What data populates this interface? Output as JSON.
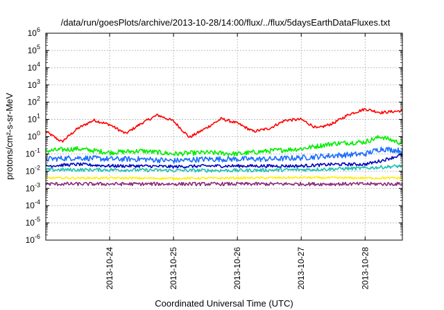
{
  "chart_data": {
    "type": "line",
    "title": "/data/run/goesPlots/archive/2013-10-28/14:00/flux/../flux/5daysEarthDataFluxes.txt",
    "xlabel": "Coordinated Universal Time (UTC)",
    "ylabel": "protons/cm²-s-sr-MeV",
    "y_scale": "log",
    "ylim": [
      1e-06,
      1000000.0
    ],
    "y_ticks": [
      {
        "base": "10",
        "exp": "-6"
      },
      {
        "base": "10",
        "exp": "-5"
      },
      {
        "base": "10",
        "exp": "-4"
      },
      {
        "base": "10",
        "exp": "-3"
      },
      {
        "base": "10",
        "exp": "-2"
      },
      {
        "base": "10",
        "exp": "-1"
      },
      {
        "base": "10",
        "exp": "0"
      },
      {
        "base": "10",
        "exp": "1"
      },
      {
        "base": "10",
        "exp": "2"
      },
      {
        "base": "10",
        "exp": "3"
      },
      {
        "base": "10",
        "exp": "4"
      },
      {
        "base": "10",
        "exp": "5"
      },
      {
        "base": "10",
        "exp": "6"
      }
    ],
    "xlim": [
      "2013-10-23 00:00",
      "2013-10-28 14:00"
    ],
    "x_ticks": [
      "2013-10-24",
      "2013-10-25",
      "2013-10-26",
      "2013-10-27",
      "2013-10-28"
    ],
    "grid": true,
    "legend": "none",
    "series": [
      {
        "color": "#ff0000",
        "x": [
          "2013-10-23 00:00",
          "2013-10-23 06:00",
          "2013-10-23 12:00",
          "2013-10-23 18:00",
          "2013-10-24 00:00",
          "2013-10-24 06:00",
          "2013-10-24 12:00",
          "2013-10-24 18:00",
          "2013-10-25 00:00",
          "2013-10-25 06:00",
          "2013-10-25 12:00",
          "2013-10-25 18:00",
          "2013-10-26 00:00",
          "2013-10-26 06:00",
          "2013-10-26 12:00",
          "2013-10-26 18:00",
          "2013-10-27 00:00",
          "2013-10-27 06:00",
          "2013-10-27 12:00",
          "2013-10-27 18:00",
          "2013-10-28 00:00",
          "2013-10-28 06:00",
          "2013-10-28 12:00",
          "2013-10-28 14:00"
        ],
        "y": [
          2,
          0.5,
          3,
          9,
          5,
          1.5,
          6,
          18,
          8,
          0.9,
          3,
          11,
          6,
          2,
          3,
          9,
          10,
          3,
          6,
          20,
          40,
          25,
          30,
          32
        ]
      },
      {
        "color": "#00ee00",
        "x": [
          "2013-10-23 00:00",
          "2013-10-23 12:00",
          "2013-10-24 00:00",
          "2013-10-24 12:00",
          "2013-10-25 00:00",
          "2013-10-25 12:00",
          "2013-10-26 00:00",
          "2013-10-26 12:00",
          "2013-10-27 00:00",
          "2013-10-27 12:00",
          "2013-10-28 00:00",
          "2013-10-28 06:00",
          "2013-10-28 14:00"
        ],
        "y": [
          0.15,
          0.2,
          0.12,
          0.15,
          0.1,
          0.12,
          0.1,
          0.15,
          0.2,
          0.4,
          0.5,
          1.0,
          0.4
        ]
      },
      {
        "color": "#1a6dff",
        "x": [
          "2013-10-23 00:00",
          "2013-10-23 12:00",
          "2013-10-24 00:00",
          "2013-10-24 12:00",
          "2013-10-25 00:00",
          "2013-10-25 12:00",
          "2013-10-26 00:00",
          "2013-10-26 12:00",
          "2013-10-27 00:00",
          "2013-10-27 12:00",
          "2013-10-28 00:00",
          "2013-10-28 06:00",
          "2013-10-28 14:00"
        ],
        "y": [
          0.05,
          0.06,
          0.05,
          0.05,
          0.04,
          0.05,
          0.05,
          0.05,
          0.06,
          0.08,
          0.1,
          0.2,
          0.15
        ]
      },
      {
        "color": "#0000c0",
        "x": [
          "2013-10-23 00:00",
          "2013-10-23 12:00",
          "2013-10-24 00:00",
          "2013-10-24 12:00",
          "2013-10-25 00:00",
          "2013-10-25 12:00",
          "2013-10-26 00:00",
          "2013-10-26 12:00",
          "2013-10-27 00:00",
          "2013-10-27 12:00",
          "2013-10-28 00:00",
          "2013-10-28 06:00",
          "2013-10-28 14:00"
        ],
        "y": [
          0.02,
          0.025,
          0.02,
          0.02,
          0.018,
          0.02,
          0.02,
          0.02,
          0.02,
          0.025,
          0.025,
          0.04,
          0.09
        ]
      },
      {
        "color": "#20c0b0",
        "x": [
          "2013-10-23 00:00",
          "2013-10-24 00:00",
          "2013-10-25 00:00",
          "2013-10-26 00:00",
          "2013-10-27 00:00",
          "2013-10-28 00:00",
          "2013-10-28 14:00"
        ],
        "y": [
          0.012,
          0.012,
          0.011,
          0.011,
          0.012,
          0.015,
          0.02
        ]
      },
      {
        "color": "#ffee00",
        "x": [
          "2013-10-23 00:00",
          "2013-10-24 00:00",
          "2013-10-25 00:00",
          "2013-10-26 00:00",
          "2013-10-27 00:00",
          "2013-10-28 00:00",
          "2013-10-28 14:00"
        ],
        "y": [
          0.004,
          0.004,
          0.0038,
          0.004,
          0.0042,
          0.004,
          0.004
        ]
      },
      {
        "color": "#8b2a7a",
        "x": [
          "2013-10-23 00:00",
          "2013-10-24 00:00",
          "2013-10-25 00:00",
          "2013-10-26 00:00",
          "2013-10-27 00:00",
          "2013-10-28 00:00",
          "2013-10-28 14:00"
        ],
        "y": [
          0.0018,
          0.0018,
          0.0018,
          0.0018,
          0.0018,
          0.0018,
          0.0018
        ]
      }
    ]
  }
}
